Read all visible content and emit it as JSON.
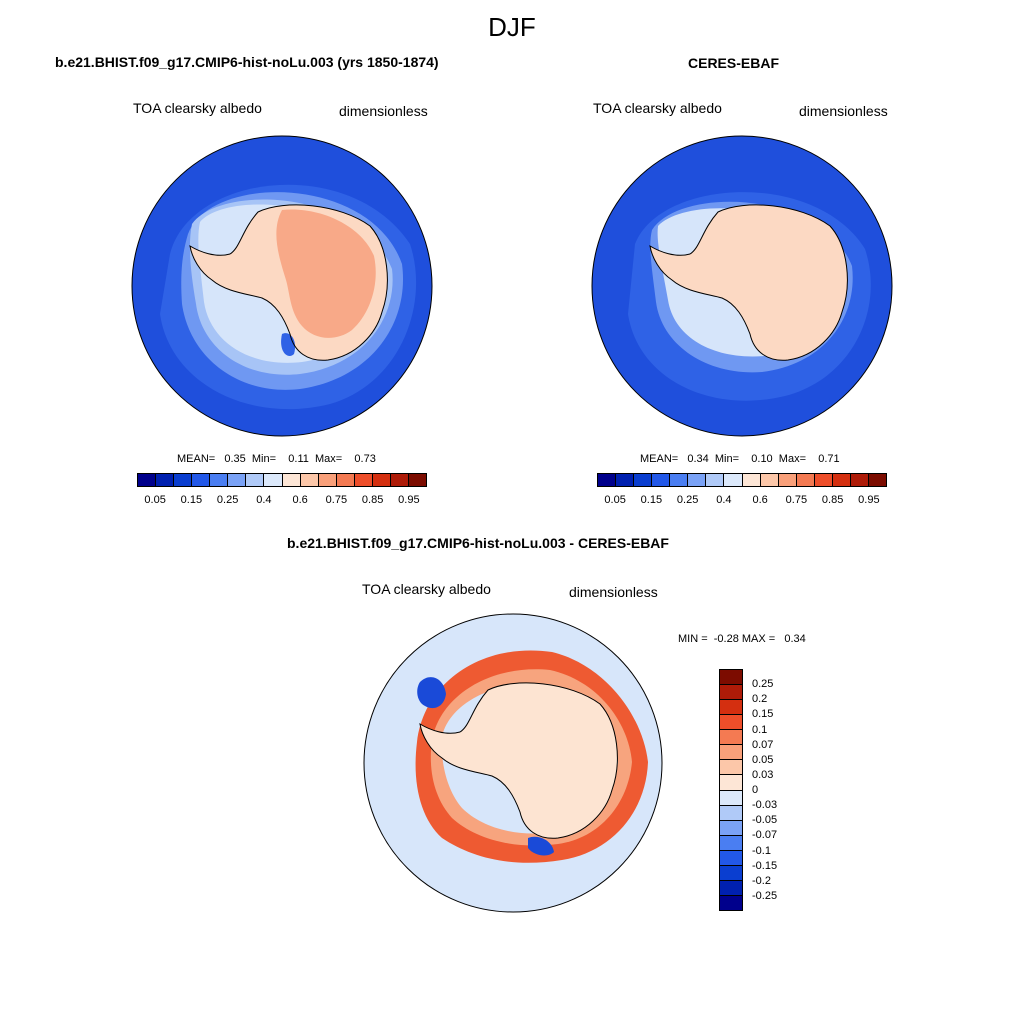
{
  "page": {
    "title": "DJF"
  },
  "panels": [
    {
      "title": "b.e21.BHIST.f09_g17.CMIP6-hist-noLu.003 (yrs 1850-1874)",
      "variable": "TOA clearsky albedo",
      "units": "dimensionless",
      "stats": "MEAN=   0.35  Min=    0.11  Max=    0.73"
    },
    {
      "title": "CERES-EBAF",
      "variable": "TOA clearsky albedo",
      "units": "dimensionless",
      "stats": "MEAN=   0.34  Min=    0.10  Max=    0.71"
    },
    {
      "title": "b.e21.BHIST.f09_g17.CMIP6-hist-noLu.003 - CERES-EBAF",
      "variable": "TOA clearsky albedo",
      "units": "dimensionless",
      "stats": "MIN =  -0.28 MAX =   0.34"
    }
  ],
  "colorbar_abs": {
    "colors": [
      "#00008c",
      "#0020b0",
      "#0a3ed0",
      "#2258e8",
      "#4a7ef2",
      "#7aa2f6",
      "#b0caf8",
      "#dce9fb",
      "#fde6d6",
      "#fcc7a9",
      "#f9a07a",
      "#f47a52",
      "#ee4e2a",
      "#d42f10",
      "#ae1b08",
      "#7c0c00"
    ],
    "tick_labels": [
      "0.05",
      "0.15",
      "0.25",
      "0.4",
      "0.6",
      "0.75",
      "0.85",
      "0.95"
    ]
  },
  "colorbar_diff": {
    "colors": [
      "#7c0c00",
      "#ae1b08",
      "#d42f10",
      "#ee4e2a",
      "#f47a52",
      "#f9a07a",
      "#fcc7a9",
      "#fde6d6",
      "#dce9fb",
      "#b0caf8",
      "#7aa2f6",
      "#4a7ef2",
      "#2258e8",
      "#0a3ed0",
      "#0020b0",
      "#00008c"
    ],
    "tick_labels": [
      "0.25",
      "0.2",
      "0.15",
      "0.1",
      "0.07",
      "0.05",
      "0.03",
      "0",
      "-0.03",
      "-0.05",
      "-0.07",
      "-0.1",
      "-0.15",
      "-0.2",
      "-0.25"
    ]
  },
  "map_colors": {
    "ocean_far": "#1f4fdc",
    "ocean_mid": "#2f62e6",
    "ice_outer": "#6f98f2",
    "ice_mid": "#a7c4f6",
    "ice_inner": "#d6e5fa",
    "land_low": "#fcd9c3",
    "land_high": "#f8a988",
    "diff_neutral": "#d7e6fa",
    "diff_warm": "#ee5a32",
    "diff_warm_light": "#f7a47e",
    "diff_pale": "#fde4d2",
    "diff_cold": "#1a4ad8",
    "outline": "#000000"
  }
}
